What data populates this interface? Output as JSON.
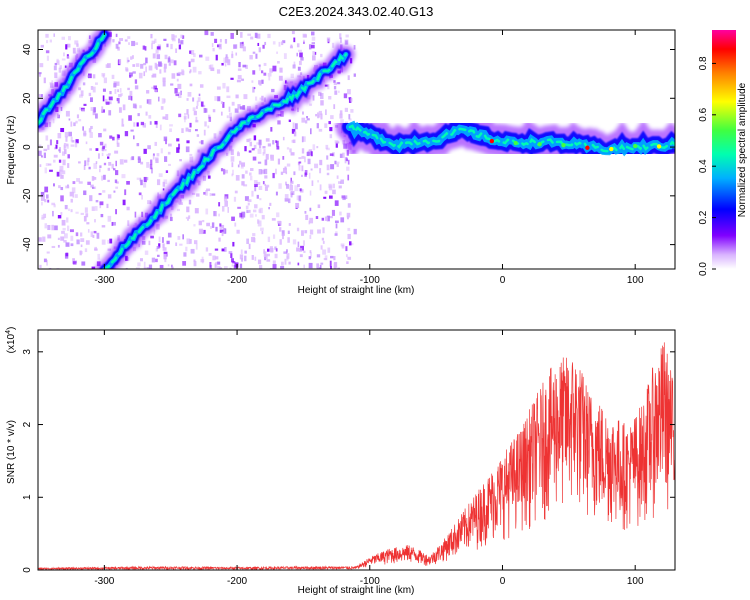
{
  "title": "C2E3.2024.343.02.40.G13",
  "colors": {
    "snr_line": "#ee3333",
    "axes": "#000000",
    "colormap": [
      "#ffffff",
      "#d9b3ff",
      "#8000ff",
      "#0000ff",
      "#00b0ff",
      "#00ffb0",
      "#40ff40",
      "#ffff00",
      "#ff8000",
      "#ff0000",
      "#ff00a0"
    ]
  },
  "chart_data": [
    {
      "type": "heatmap",
      "xlabel": "Height of straight line (km)",
      "ylabel": "Frequency (Hz)",
      "xlim": [
        -350,
        130
      ],
      "ylim": [
        -50,
        48
      ],
      "xticks": [
        -300,
        -200,
        -100,
        0,
        100
      ],
      "yticks": [
        -40,
        -20,
        0,
        20,
        40
      ],
      "grid": false,
      "colorbar": {
        "label": "Normalized spectral amplitude",
        "range": [
          0.0,
          0.93
        ],
        "ticks": [
          "0.0",
          "0.2",
          "0.4",
          "0.6",
          "0.8"
        ]
      },
      "ridges": [
        {
          "points": [
            [
              -350,
              10
            ],
            [
              -300,
              46
            ]
          ]
        },
        {
          "points": [
            [
              -300,
              -50
            ],
            [
              -240,
              -15
            ],
            [
              -200,
              8
            ],
            [
              -155,
              22
            ],
            [
              -118,
              38
            ]
          ]
        },
        {
          "points": [
            [
              -115,
              8
            ],
            [
              -80,
              1
            ],
            [
              -50,
              3
            ],
            [
              -30,
              7
            ],
            [
              0,
              2
            ],
            [
              40,
              2
            ],
            [
              80,
              -1
            ],
            [
              130,
              1
            ]
          ]
        }
      ]
    },
    {
      "type": "line",
      "xlabel": "Height of straight line (km)",
      "ylabel": "SNR (10 * v/v)",
      "yscale_label": "(x10",
      "yscale_exp": "4",
      "yscale_close": ")",
      "xlim": [
        -350,
        130
      ],
      "ylim": [
        0,
        3.3
      ],
      "xticks": [
        -300,
        -200,
        -100,
        0,
        100
      ],
      "yticks": [
        0,
        1,
        2,
        3
      ],
      "grid": false,
      "envelope": [
        [
          -350,
          0.03
        ],
        [
          -300,
          0.04
        ],
        [
          -250,
          0.05
        ],
        [
          -200,
          0.04
        ],
        [
          -150,
          0.05
        ],
        [
          -110,
          0.05
        ],
        [
          -100,
          0.18
        ],
        [
          -85,
          0.3
        ],
        [
          -70,
          0.35
        ],
        [
          -55,
          0.2
        ],
        [
          -45,
          0.4
        ],
        [
          -30,
          0.8
        ],
        [
          -15,
          1.2
        ],
        [
          0,
          1.6
        ],
        [
          15,
          2.0
        ],
        [
          25,
          2.4
        ],
        [
          40,
          2.9
        ],
        [
          55,
          3.0
        ],
        [
          65,
          2.5
        ],
        [
          80,
          2.2
        ],
        [
          95,
          2.0
        ],
        [
          105,
          2.3
        ],
        [
          115,
          2.9
        ],
        [
          122,
          3.2
        ],
        [
          130,
          2.5
        ]
      ]
    }
  ]
}
